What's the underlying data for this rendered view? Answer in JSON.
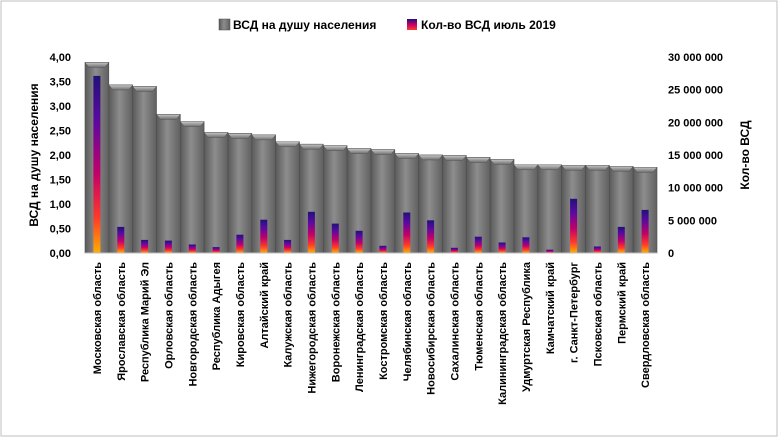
{
  "chart_data": {
    "type": "bar",
    "categories": [
      "Московская область",
      "Ярославская область",
      "Республика Марий Эл",
      "Орловская область",
      "Новгородская область",
      "Республика Адыгея",
      "Кировская область",
      "Алтайский край",
      "Калужская область",
      "Нижегородская область",
      "Воронежская область",
      "Ленинградская область",
      "Костромская область",
      "Челябинская область",
      "Новосибирская область",
      "Сахалинская область",
      "Тюменская область",
      "Калининградская область",
      "Удмуртская Республика",
      "Камчатский край",
      "г. Санкт-Петербург",
      "Псковская область",
      "Пермский край",
      "Свердловская область"
    ],
    "series": [
      {
        "name": "ВСД на душу населения",
        "axis": "left",
        "color": "#808080",
        "values": [
          3.89,
          3.43,
          3.4,
          2.83,
          2.68,
          2.46,
          2.44,
          2.41,
          2.27,
          2.22,
          2.19,
          2.13,
          2.11,
          2.03,
          2.0,
          1.99,
          1.95,
          1.91,
          1.8,
          1.8,
          1.79,
          1.79,
          1.77,
          1.75
        ]
      },
      {
        "name": "Кол-во ВСД июль 2019",
        "axis": "right",
        "color": "#3b0f8a",
        "values": [
          27100000,
          4000000,
          2000000,
          1900000,
          1300000,
          900000,
          2800000,
          5100000,
          2000000,
          6300000,
          4500000,
          3400000,
          1100000,
          6200000,
          5000000,
          800000,
          2500000,
          1600000,
          2400000,
          500000,
          8300000,
          1000000,
          4000000,
          6600000
        ]
      }
    ],
    "ylabel_left": "ВСД на душу населения",
    "ylabel_right": "Кол-во ВСД",
    "ylim_left": [
      0,
      4
    ],
    "ylim_right": [
      0,
      30000000
    ],
    "yticks_left": [
      "0,00",
      "0,50",
      "1,00",
      "1,50",
      "2,00",
      "2,50",
      "3,00",
      "3,50",
      "4,00"
    ],
    "yticks_right": [
      "0",
      "5 000 000",
      "10 000 000",
      "15 000 000",
      "20 000 000",
      "25 000 000",
      "30 000 000"
    ],
    "legend_position": "top",
    "grid": false
  }
}
